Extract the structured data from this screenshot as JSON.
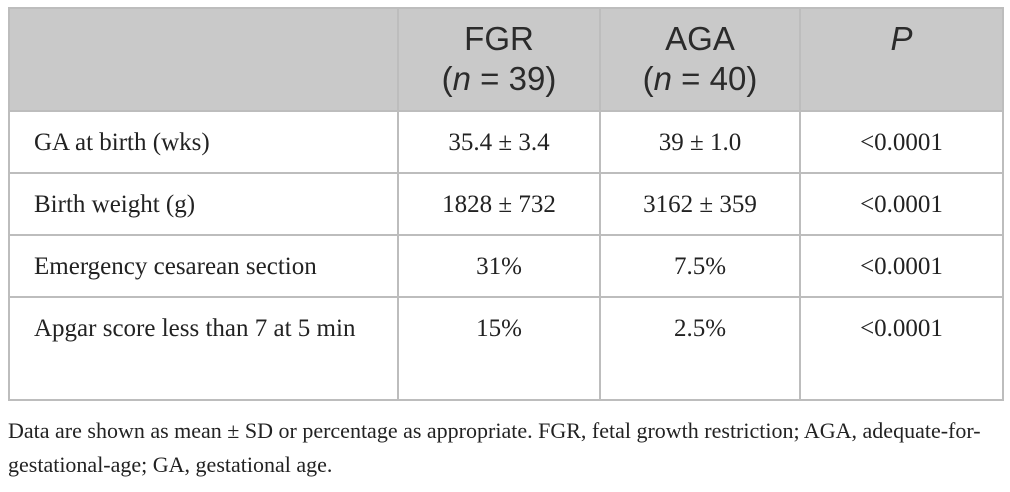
{
  "table": {
    "header": {
      "col1": "",
      "fgr_name": "FGR",
      "fgr_n_prefix": "(",
      "fgr_n_var": "n",
      "fgr_n_suffix": " = 39)",
      "aga_name": "AGA",
      "aga_n_prefix": "(",
      "aga_n_var": "n",
      "aga_n_suffix": " = 40)",
      "p": "P"
    },
    "rows": [
      {
        "label": "GA at birth (wks)",
        "fgr": "35.4 ± 3.4",
        "aga": "39 ± 1.0",
        "p": "<0.0001"
      },
      {
        "label": "Birth weight (g)",
        "fgr": "1828 ± 732",
        "aga": "3162 ± 359",
        "p": "<0.0001"
      },
      {
        "label": "Emergency cesarean section",
        "fgr": "31%",
        "aga": "7.5%",
        "p": "<0.0001"
      },
      {
        "label": "Apgar score less than 7 at 5 min",
        "fgr": "15%",
        "aga": "2.5%",
        "p": "<0.0001"
      }
    ]
  },
  "footnote": "Data are shown as mean ± SD or percentage as appropriate. FGR, fetal growth restriction; AGA, adequate-for-gestational-age; GA, gestational age."
}
